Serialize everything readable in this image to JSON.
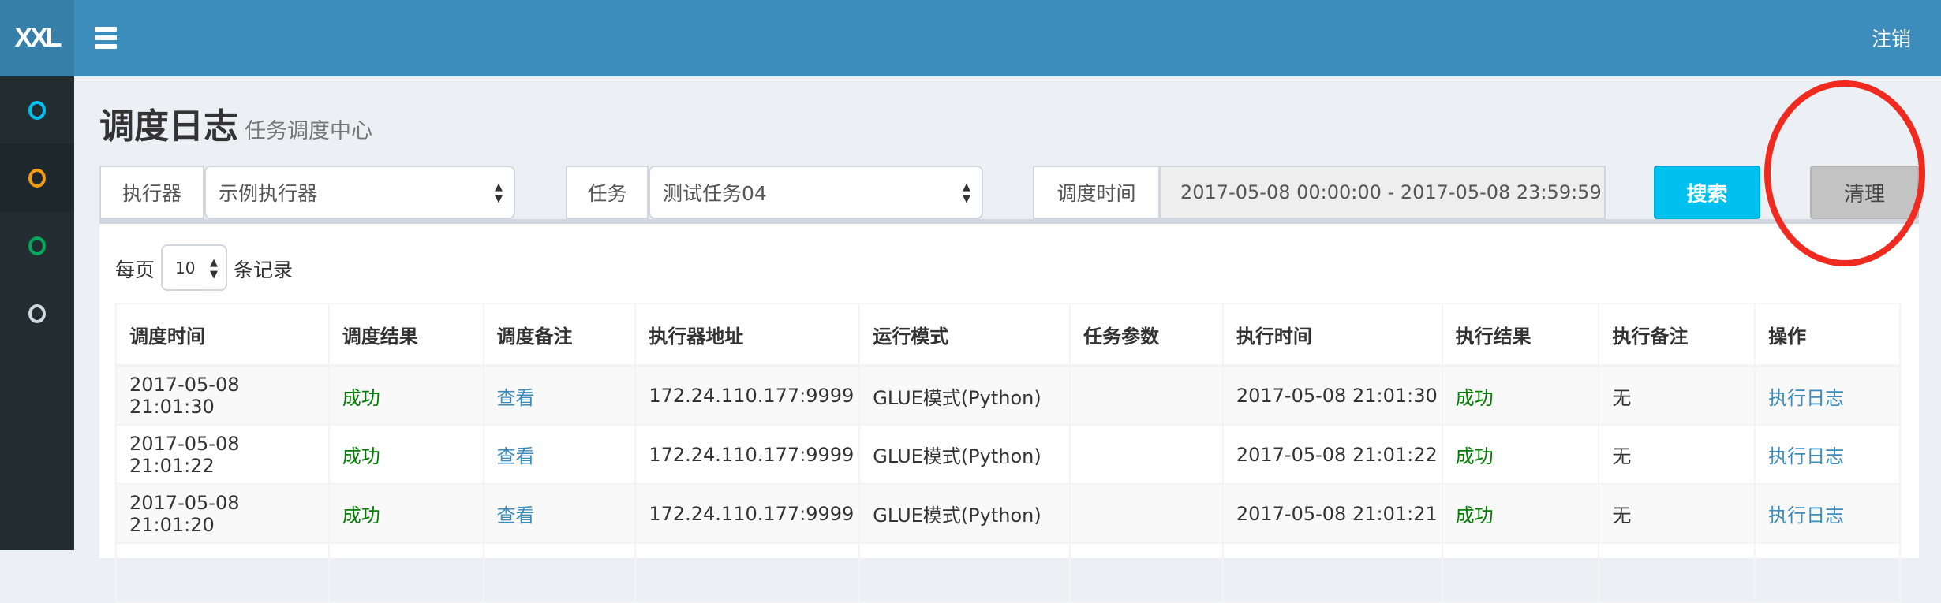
{
  "topbar": {
    "logo": "XXL",
    "logout": "注销",
    "color": "#3c8dbc"
  },
  "sidebar": {
    "items": [
      {
        "icon": "circle-icon",
        "color": "#00c0ef"
      },
      {
        "icon": "circle-icon",
        "color": "#f39c12"
      },
      {
        "icon": "circle-icon",
        "color": "#00a65a"
      },
      {
        "icon": "circle-icon",
        "color": "#d2d6de"
      }
    ]
  },
  "header": {
    "title": "调度日志",
    "subtitle": "任务调度中心"
  },
  "filters": {
    "executor": {
      "label": "执行器",
      "value": "示例执行器"
    },
    "task": {
      "label": "任务",
      "value": "测试任务04"
    },
    "time": {
      "label": "调度时间",
      "value": "2017-05-08 00:00:00 - 2017-05-08 23:59:59"
    },
    "search_label": "搜索",
    "clear_label": "清理"
  },
  "pagesize": {
    "prefix": "每页",
    "value": "10",
    "suffix": "条记录"
  },
  "table": {
    "columns": [
      "调度时间",
      "调度结果",
      "调度备注",
      "执行器地址",
      "运行模式",
      "任务参数",
      "执行时间",
      "执行结果",
      "执行备注",
      "操作"
    ],
    "rows": [
      [
        "2017-05-08 21:01:30",
        "成功",
        "查看",
        "172.24.110.177:9999",
        "GLUE模式(Python)",
        "",
        "2017-05-08 21:01:30",
        "成功",
        "无",
        "执行日志"
      ],
      [
        "2017-05-08 21:01:22",
        "成功",
        "查看",
        "172.24.110.177:9999",
        "GLUE模式(Python)",
        "",
        "2017-05-08 21:01:22",
        "成功",
        "无",
        "执行日志"
      ],
      [
        "2017-05-08 21:01:20",
        "成功",
        "查看",
        "172.24.110.177:9999",
        "GLUE模式(Python)",
        "",
        "2017-05-08 21:01:21",
        "成功",
        "无",
        "执行日志"
      ]
    ]
  }
}
